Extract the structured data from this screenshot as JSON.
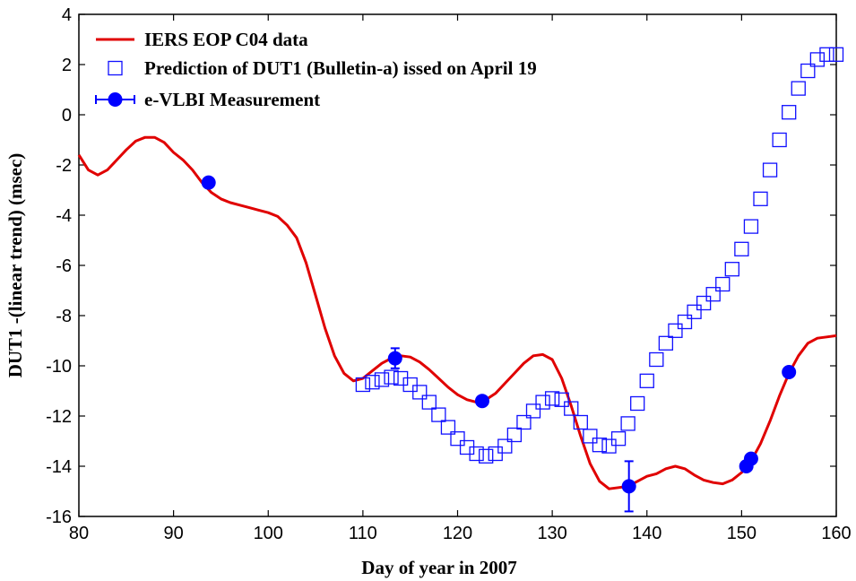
{
  "chart_data": {
    "type": "line",
    "xlabel": "Day of year in  2007",
    "ylabel": "DUT1 -(linear trend) (msec)",
    "xlim": [
      80,
      160
    ],
    "ylim": [
      -16,
      4
    ],
    "xticks": [
      80,
      90,
      100,
      110,
      120,
      130,
      140,
      150,
      160
    ],
    "yticks": [
      -16,
      -14,
      -12,
      -10,
      -8,
      -6,
      -4,
      -2,
      0,
      2,
      4
    ],
    "grid": false,
    "legend_position": "top-left",
    "series": [
      {
        "name": "IERS EOP C04 data",
        "style": "line",
        "color": "#e00000",
        "x": [
          80,
          81,
          82,
          83,
          84,
          85,
          86,
          87,
          88,
          89,
          90,
          91,
          92,
          93,
          94,
          95,
          96,
          97,
          98,
          99,
          100,
          101,
          102,
          103,
          104,
          105,
          106,
          107,
          108,
          109,
          110,
          111,
          112,
          113,
          114,
          115,
          116,
          117,
          118,
          119,
          120,
          121,
          122,
          123,
          124,
          125,
          126,
          127,
          128,
          129,
          130,
          131,
          132,
          133,
          134,
          135,
          136,
          137,
          138,
          139,
          140,
          141,
          142,
          143,
          144,
          145,
          146,
          147,
          148,
          149,
          150,
          151,
          152,
          153,
          154,
          155,
          156,
          157,
          158,
          159,
          160
        ],
        "values": [
          -1.6,
          -2.2,
          -2.4,
          -2.2,
          -1.8,
          -1.4,
          -1.05,
          -0.9,
          -0.9,
          -1.1,
          -1.5,
          -1.8,
          -2.2,
          -2.7,
          -3.1,
          -3.35,
          -3.5,
          -3.6,
          -3.7,
          -3.8,
          -3.9,
          -4.05,
          -4.4,
          -4.9,
          -5.9,
          -7.2,
          -8.5,
          -9.6,
          -10.3,
          -10.6,
          -10.5,
          -10.2,
          -9.9,
          -9.7,
          -9.6,
          -9.65,
          -9.85,
          -10.15,
          -10.5,
          -10.85,
          -11.15,
          -11.35,
          -11.45,
          -11.35,
          -11.1,
          -10.7,
          -10.3,
          -9.9,
          -9.6,
          -9.55,
          -9.75,
          -10.5,
          -11.6,
          -12.8,
          -13.9,
          -14.6,
          -14.9,
          -14.85,
          -14.8,
          -14.6,
          -14.4,
          -14.3,
          -14.1,
          -14.0,
          -14.1,
          -14.35,
          -14.55,
          -14.65,
          -14.7,
          -14.55,
          -14.25,
          -13.8,
          -13.1,
          -12.2,
          -11.2,
          -10.3,
          -9.6,
          -9.1,
          -8.9,
          -8.85,
          -8.8
        ]
      },
      {
        "name": "Prediction of DUT1 (Bulletin-a) issed on April 19",
        "style": "open-square",
        "color": "#1010ff",
        "x": [
          110,
          111,
          112,
          113,
          114,
          115,
          116,
          117,
          118,
          119,
          120,
          121,
          122,
          123,
          124,
          125,
          126,
          127,
          128,
          129,
          130,
          131,
          132,
          133,
          134,
          135,
          136,
          137,
          138,
          139,
          140,
          141,
          142,
          143,
          144,
          145,
          146,
          147,
          148,
          149,
          150,
          151,
          152,
          153,
          154,
          155,
          156,
          157,
          158,
          159,
          160
        ],
        "values": [
          -10.75,
          -10.65,
          -10.55,
          -10.45,
          -10.5,
          -10.75,
          -11.05,
          -11.45,
          -11.95,
          -12.45,
          -12.9,
          -13.25,
          -13.5,
          -13.6,
          -13.5,
          -13.2,
          -12.75,
          -12.25,
          -11.8,
          -11.45,
          -11.3,
          -11.35,
          -11.7,
          -12.25,
          -12.8,
          -13.15,
          -13.2,
          -12.9,
          -12.3,
          -11.5,
          -10.6,
          -9.75,
          -9.1,
          -8.6,
          -8.25,
          -7.85,
          -7.5,
          -7.15,
          -6.75,
          -6.15,
          -5.35,
          -4.45,
          -3.35,
          -2.2,
          -1.0,
          0.1,
          1.05,
          1.75,
          2.2,
          2.4,
          2.4
        ]
      },
      {
        "name": "e-VLBI Measurement",
        "style": "filled-circle-errorbar",
        "color": "#0000ff",
        "x": [
          93.7,
          113.4,
          122.6,
          138.1,
          150.5,
          151.0,
          155.0
        ],
        "values": [
          -2.7,
          -9.7,
          -11.4,
          -14.8,
          -14.0,
          -13.7,
          -10.25
        ],
        "errors": [
          0,
          0.4,
          0,
          1.0,
          0,
          0,
          0
        ]
      }
    ]
  }
}
